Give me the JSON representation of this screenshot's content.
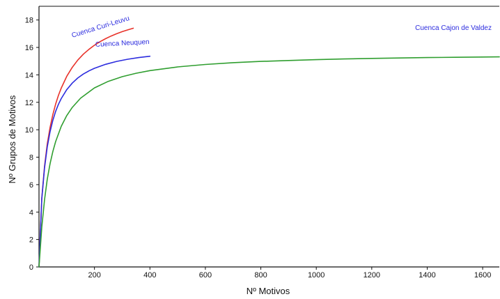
{
  "chart_data": {
    "type": "line",
    "xlabel": "Nº Motivos",
    "ylabel": "Nº Grupos de Motivos",
    "xlim": [
      0,
      1660
    ],
    "ylim": [
      0,
      19
    ],
    "x_ticks": [
      200,
      400,
      600,
      800,
      1000,
      1200,
      1400,
      1600
    ],
    "y_ticks": [
      0,
      2,
      4,
      6,
      8,
      10,
      12,
      14,
      16,
      18
    ],
    "grid": false,
    "legend": "none (series labels drawn on chart)",
    "series": [
      {
        "name": "Cuenca Curi-Leuvu",
        "color": "#e8322a",
        "x": [
          0,
          10,
          20,
          30,
          40,
          50,
          60,
          70,
          80,
          100,
          120,
          140,
          160,
          180,
          200,
          220,
          240,
          260,
          280,
          300,
          320,
          340
        ],
        "y": [
          0,
          5.0,
          7.36,
          8.97,
          10.17,
          11.11,
          11.87,
          12.5,
          13.03,
          13.89,
          14.55,
          15.08,
          15.51,
          15.86,
          16.16,
          16.42,
          16.64,
          16.83,
          17.0,
          17.15,
          17.28,
          17.4
        ]
      },
      {
        "name": "Cuenca Neuquen",
        "color": "#2c2cde",
        "x": [
          0,
          10,
          20,
          30,
          40,
          50,
          60,
          70,
          80,
          100,
          120,
          140,
          160,
          180,
          200,
          240,
          280,
          320,
          360,
          400
        ],
        "y": [
          0,
          4.96,
          7.24,
          8.76,
          9.86,
          10.69,
          11.34,
          11.85,
          12.27,
          12.92,
          13.4,
          13.77,
          14.06,
          14.29,
          14.48,
          14.77,
          14.98,
          15.14,
          15.26,
          15.36
        ]
      },
      {
        "name": "Cuenca Cajon de Valdez",
        "color": "#2f9e2f",
        "x": [
          0,
          10,
          20,
          30,
          40,
          50,
          60,
          80,
          100,
          120,
          150,
          200,
          250,
          300,
          350,
          400,
          500,
          600,
          700,
          800,
          900,
          1000,
          1100,
          1200,
          1300,
          1400,
          1500,
          1600,
          1660
        ],
        "y": [
          0,
          2.9,
          4.92,
          6.4,
          7.53,
          8.42,
          9.14,
          10.24,
          11.03,
          11.63,
          12.3,
          13.05,
          13.53,
          13.87,
          14.12,
          14.31,
          14.58,
          14.76,
          14.89,
          14.98,
          15.05,
          15.11,
          15.16,
          15.2,
          15.23,
          15.26,
          15.28,
          15.3,
          15.31
        ]
      }
    ]
  }
}
